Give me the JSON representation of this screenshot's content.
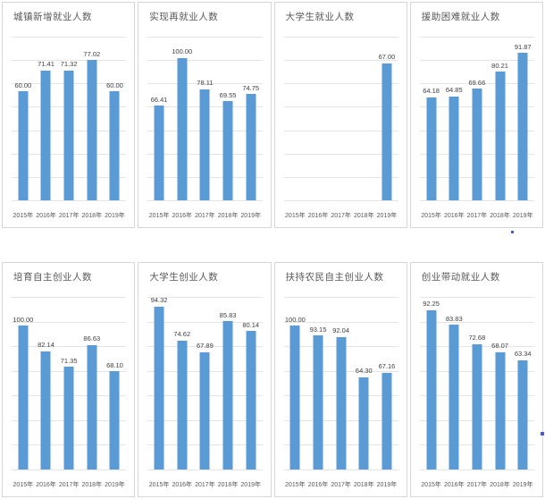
{
  "palette": {
    "bar_color": "#5b9bd5",
    "grid_color": "#e4e4e4",
    "title_color": "#595959",
    "label_color": "#404040",
    "card_border": "#d7d7d7"
  },
  "chart_data": [
    {
      "type": "bar",
      "title": "城镇新增就业人数",
      "categories": [
        "2015年",
        "2016年",
        "2017年",
        "2018年",
        "2019年"
      ],
      "values": [
        60.0,
        71.41,
        71.32,
        77.02,
        60.0
      ],
      "labels": [
        "60.00",
        "71.41",
        "71.32",
        "77.02",
        "60.00"
      ],
      "xlabel": "",
      "ylabel": "",
      "ylim": [
        0,
        90
      ],
      "grid": true,
      "legend": false
    },
    {
      "type": "bar",
      "title": "实现再就业人数",
      "categories": [
        "2015年",
        "2016年",
        "2017年",
        "2018年",
        "2019年"
      ],
      "values": [
        66.41,
        100.0,
        78.11,
        69.55,
        74.75
      ],
      "labels": [
        "66.41",
        "100.00",
        "78.11",
        "69.55",
        "74.75"
      ],
      "xlabel": "",
      "ylabel": "",
      "ylim": [
        0,
        115
      ],
      "grid": true,
      "legend": false
    },
    {
      "type": "bar",
      "title": "大学生就业人数",
      "categories": [
        "2015年",
        "2016年",
        "2017年",
        "2018年",
        "2019年"
      ],
      "values": [
        null,
        null,
        null,
        null,
        67.0
      ],
      "labels": [
        "",
        "",
        "",
        "",
        "67.00"
      ],
      "xlabel": "",
      "ylabel": "",
      "ylim": [
        0,
        80
      ],
      "grid": true,
      "legend": false
    },
    {
      "type": "bar",
      "title": "援助困难就业人数",
      "categories": [
        "2015年",
        "2016年",
        "2017年",
        "2018年",
        "2019年"
      ],
      "values": [
        64.18,
        64.85,
        69.66,
        80.21,
        91.87
      ],
      "labels": [
        "64.18",
        "64.85",
        "69.66",
        "80.21",
        "91.87"
      ],
      "xlabel": "",
      "ylabel": "",
      "ylim": [
        0,
        102
      ],
      "grid": true,
      "legend": false
    },
    {
      "type": "bar",
      "title": "培育自主创业人数",
      "categories": [
        "2015年",
        "2016年",
        "2017年",
        "2018年",
        "2019年"
      ],
      "values": [
        100.0,
        82.14,
        71.35,
        86.63,
        68.1
      ],
      "labels": [
        "100.00",
        "82.14",
        "71.35",
        "86.63",
        "68.10"
      ],
      "xlabel": "",
      "ylabel": "",
      "ylim": [
        0,
        120
      ],
      "grid": true,
      "legend": false
    },
    {
      "type": "bar",
      "title": "大学生创业人数",
      "categories": [
        "2015年",
        "2016年",
        "2017年",
        "2018年",
        "2019年"
      ],
      "values": [
        94.32,
        74.62,
        67.89,
        85.83,
        80.14
      ],
      "labels": [
        "94.32",
        "74.62",
        "67.89",
        "85.83",
        "80.14"
      ],
      "xlabel": "",
      "ylabel": "",
      "ylim": [
        0,
        100
      ],
      "grid": true,
      "legend": false
    },
    {
      "type": "bar",
      "title": "扶持农民自主创业人数",
      "categories": [
        "2015年",
        "2016年",
        "2017年",
        "2018年",
        "2019年"
      ],
      "values": [
        100.0,
        93.15,
        92.04,
        64.3,
        67.16
      ],
      "labels": [
        "100.00",
        "93.15",
        "92.04",
        "64.30",
        "67.16"
      ],
      "xlabel": "",
      "ylabel": "",
      "ylim": [
        0,
        120
      ],
      "grid": true,
      "legend": false
    },
    {
      "type": "bar",
      "title": "创业带动就业人数",
      "categories": [
        "2015年",
        "2016年",
        "2017年",
        "2018年",
        "2019年"
      ],
      "values": [
        92.25,
        83.83,
        72.68,
        68.07,
        63.34
      ],
      "labels": [
        "92.25",
        "83.83",
        "72.68",
        "68.07",
        "63.34"
      ],
      "xlabel": "",
      "ylabel": "",
      "ylim": [
        0,
        100
      ],
      "grid": true,
      "legend": false
    }
  ]
}
